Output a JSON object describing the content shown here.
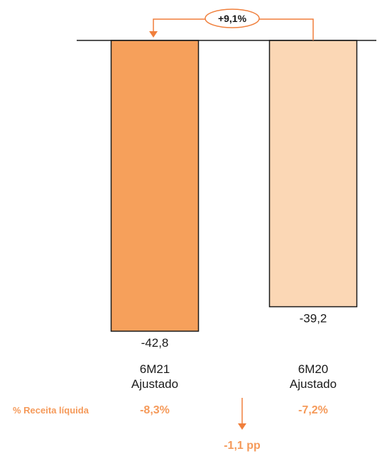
{
  "chart_data": {
    "type": "bar",
    "categories": [
      "6M21\nAjustado",
      "6M20\nAjustado"
    ],
    "category_lines": [
      [
        "6M21",
        "Ajustado"
      ],
      [
        "6M20",
        "Ajustado"
      ]
    ],
    "values": [
      -42.8,
      -39.2
    ],
    "value_labels": [
      "-42,8",
      "-39,2"
    ],
    "bar_colors": [
      "#f6a05b",
      "#fbd7b5"
    ],
    "bar_stroke": "#1a1a1a",
    "ylim": [
      -45,
      0
    ],
    "title": "",
    "xlabel": "",
    "ylabel": "",
    "growth_label": "+9,1%",
    "accent_color": "#f07f3c",
    "pct_row": {
      "title": "% Receita líquida",
      "values": [
        "-8,3%",
        "-7,2%"
      ],
      "diff_label": "-1,1 pp"
    }
  }
}
